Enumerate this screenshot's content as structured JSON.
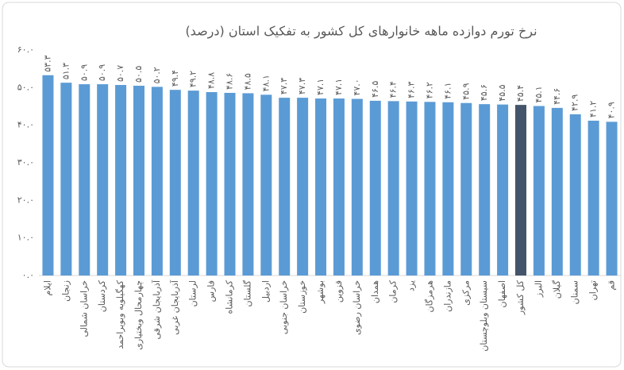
{
  "chart_data": {
    "type": "bar",
    "title": "نرخ تورم دوازده ماهه خانوارهای کل کشور به تفکیک استان (درصد)",
    "categories": [
      "ایلام",
      "زنجان",
      "خراسان شمالی",
      "کردستان",
      "کهگیلویه وبویراحمد",
      "چهارمحال وبختیاری",
      "آذربایجان شرقی",
      "آذربایجان غربی",
      "لرستان",
      "فارس",
      "کرمانشاه",
      "گلستان",
      "اردبیل",
      "خراسان جنوبی",
      "خوزستان",
      "بوشهر",
      "قزوین",
      "خراسان رضوی",
      "همدان",
      "کرمان",
      "یزد",
      "هرمزگان",
      "مازندران",
      "مرکزی",
      "سیستان وبلوچستان",
      "اصفهان",
      "کل کشور",
      "البرز",
      "گیلان",
      "سمنان",
      "تهران",
      "قم"
    ],
    "values": [
      53.3,
      51.3,
      50.9,
      50.9,
      50.7,
      50.5,
      50.2,
      49.4,
      49.2,
      48.8,
      48.6,
      48.5,
      48.1,
      47.3,
      47.3,
      47.1,
      47.1,
      47.0,
      46.5,
      46.4,
      46.3,
      46.2,
      46.1,
      45.9,
      45.6,
      45.5,
      45.4,
      45.1,
      44.6,
      42.9,
      41.2,
      40.9
    ],
    "value_labels": [
      "۵۳.۳",
      "۵۱.۳",
      "۵۰.۹",
      "۵۰.۹",
      "۵۰.۷",
      "۵۰.۵",
      "۵۰.۲",
      "۴۹.۴",
      "۴۹.۲",
      "۴۸.۸",
      "۴۸.۶",
      "۴۸.۵",
      "۴۸.۱",
      "۴۷.۳",
      "۴۷.۳",
      "۴۷.۱",
      "۴۷.۱",
      "۴۷.۰",
      "۴۶.۵",
      "۴۶.۴",
      "۴۶.۳",
      "۴۶.۲",
      "۴۶.۱",
      "۴۵.۹",
      "۴۵.۶",
      "۴۵.۵",
      "۴۵.۴",
      "۴۵.۱",
      "۴۴.۶",
      "۴۲.۹",
      "۴۱.۲",
      "۴۰.۹"
    ],
    "colors": [
      "#5b9bd5",
      "#5b9bd5",
      "#5b9bd5",
      "#5b9bd5",
      "#5b9bd5",
      "#5b9bd5",
      "#5b9bd5",
      "#5b9bd5",
      "#5b9bd5",
      "#5b9bd5",
      "#5b9bd5",
      "#5b9bd5",
      "#5b9bd5",
      "#5b9bd5",
      "#5b9bd5",
      "#5b9bd5",
      "#5b9bd5",
      "#5b9bd5",
      "#5b9bd5",
      "#5b9bd5",
      "#5b9bd5",
      "#5b9bd5",
      "#5b9bd5",
      "#5b9bd5",
      "#5b9bd5",
      "#5b9bd5",
      "#44546a",
      "#5b9bd5",
      "#5b9bd5",
      "#5b9bd5",
      "#5b9bd5",
      "#5b9bd5"
    ],
    "ylim": [
      0,
      60
    ],
    "yticks": [
      {
        "value": 0,
        "label": "۰.۰"
      },
      {
        "value": 10,
        "label": "۱۰.۰"
      },
      {
        "value": 20,
        "label": "۲۰.۰"
      },
      {
        "value": 30,
        "label": "۳۰.۰"
      },
      {
        "value": 40,
        "label": "۴۰.۰"
      },
      {
        "value": 50,
        "label": "۵۰.۰"
      },
      {
        "value": 60,
        "label": "۶۰.۰"
      }
    ],
    "grid": false
  }
}
